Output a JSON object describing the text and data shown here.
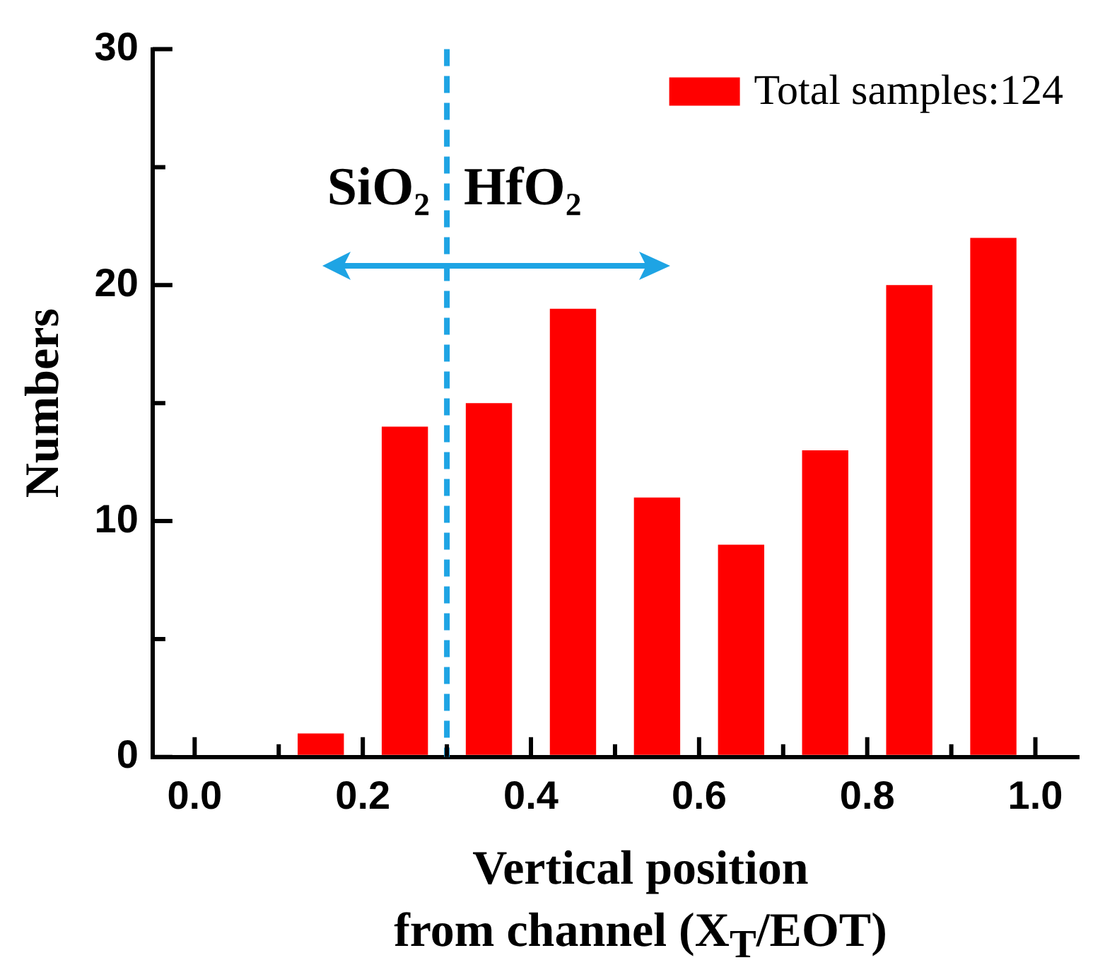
{
  "chart_data": {
    "type": "histogram",
    "ylabel": "Numbers",
    "xlabel": "Vertical position\nfrom channel (X$_{T}$/EOT)",
    "bins": [
      0.0,
      0.1,
      0.2,
      0.3,
      0.4,
      0.5,
      0.6,
      0.7,
      0.8,
      0.9,
      1.0
    ],
    "series": [
      {
        "name": "Total samples:124",
        "color": "#ff0000",
        "values": [
          0,
          1,
          14,
          15,
          19,
          11,
          9,
          13,
          20,
          22
        ]
      }
    ],
    "xlim": [
      -0.05,
      1.05
    ],
    "xticks": [
      {
        "value": 0,
        "label": "0.0"
      },
      {
        "value": 0.1,
        "label": null
      },
      {
        "value": 0.2,
        "label": "0.2"
      },
      {
        "value": 0.3,
        "label": null
      },
      {
        "value": 0.4,
        "label": "0.4"
      },
      {
        "value": 0.5,
        "label": null
      },
      {
        "value": 0.6,
        "label": "0.6"
      },
      {
        "value": 0.7,
        "label": null
      },
      {
        "value": 0.8,
        "label": "0.8"
      },
      {
        "value": 0.9,
        "label": null
      },
      {
        "value": 1.0,
        "label": "1.0"
      }
    ],
    "ylim": [
      0,
      30
    ],
    "yticks": [
      0,
      {
        "value": 5,
        "label": null
      },
      10,
      {
        "value": 15,
        "label": null
      },
      20,
      {
        "value": 25,
        "label": null
      },
      30
    ],
    "ref_lines": [
      {
        "axis": "x",
        "value": 0.3,
        "color": "#1ea4e4",
        "line_style": "dashed"
      }
    ],
    "annotations": [
      "SiO₂",
      "HfO₂"
    ],
    "grid": false,
    "legend": "top right"
  }
}
